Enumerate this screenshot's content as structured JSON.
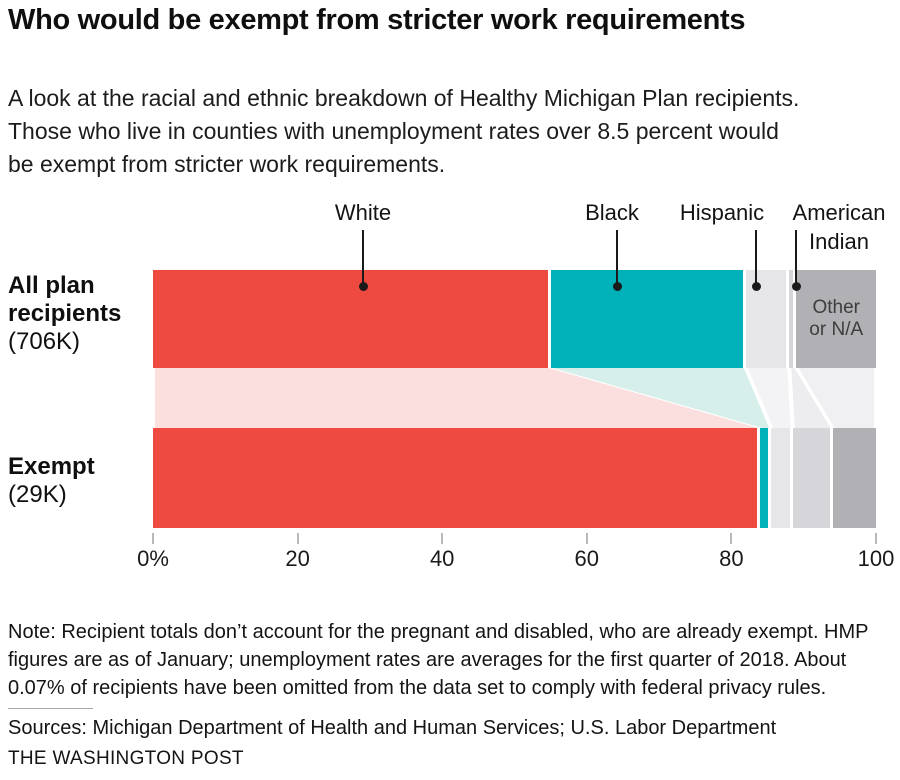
{
  "header": {
    "title": "Who would be exempt from stricter work requirements",
    "subtitle": "A look at the racial and ethnic breakdown of Healthy Michigan Plan recipients. Those who live in counties with unemployment rates over 8.5 percent would be exempt from stricter work requirements."
  },
  "chart_data": {
    "type": "bar",
    "orientation": "horizontal-stacked-alluvial",
    "title": "Who would be exempt from stricter work requirements",
    "unit": "percent",
    "categories": [
      "White",
      "Black",
      "Hispanic",
      "American Indian",
      "Other or N/A"
    ],
    "category_colors": [
      "#ef4a40",
      "#00b1ba",
      "#e6e6e8",
      "#d6d6da",
      "#b1b1b5"
    ],
    "flow_colors": [
      "#fbdfdf",
      "#d6efea",
      "#f3f3f5",
      "#ededf0",
      "#f0f0f2"
    ],
    "series": [
      {
        "name": "All plan recipients",
        "total_label": "(706K)",
        "values": [
          55,
          27,
          6,
          1,
          11
        ]
      },
      {
        "name": "Exempt",
        "total_label": "(29K)",
        "values": [
          84,
          1.5,
          3,
          5.5,
          6
        ]
      }
    ],
    "axis": {
      "xlim": [
        0,
        100
      ],
      "tick_values": [
        0,
        20,
        40,
        60,
        80,
        100
      ],
      "tick_labels": [
        "0%",
        "20",
        "40",
        "60",
        "80",
        "100"
      ]
    },
    "grid": "off",
    "legend": "labels-above-with-leader-lines",
    "other_na_label_lines": [
      "Other",
      "or N/A"
    ]
  },
  "footer": {
    "note": "Note: Recipient totals don’t account for the pregnant and disabled, who are already exempt. HMP figures are as of January; unemployment rates are averages for the first quarter of 2018. About 0.07% of recipients have been omitted from the data set to comply with federal privacy rules.",
    "sources": "Sources: Michigan Department of Health and Human Services; U.S. Labor Department",
    "credit": "THE WASHINGTON POST"
  }
}
